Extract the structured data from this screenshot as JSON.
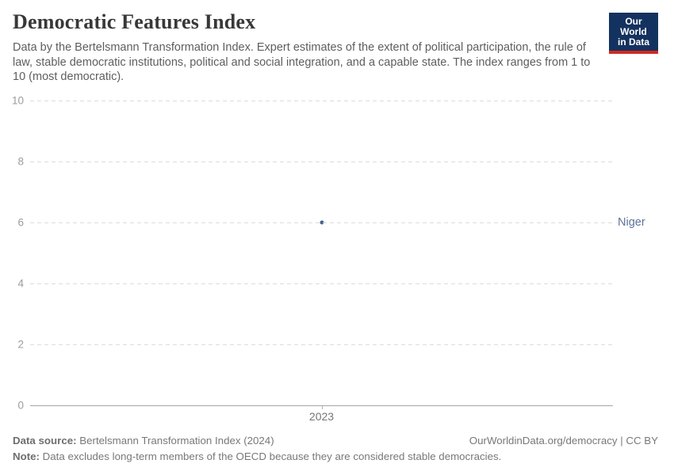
{
  "header": {
    "title": "Democratic Features Index",
    "subtitle": "Data by the Bertelsmann Transformation Index. Expert estimates of the extent of political participation, the rule of law, stable democratic institutions, political and social integration, and a capable state. The index ranges from 1 to 10 (most democratic).",
    "logo": {
      "line1": "Our World",
      "line2": "in Data"
    }
  },
  "colors": {
    "logo_navy": "#14325f",
    "logo_red": "#cf2a23",
    "point_blue": "#46618e",
    "entity_label_blue": "#5b749c"
  },
  "chart_data": {
    "type": "scatter",
    "title": "Democratic Features Index",
    "x": [
      2023
    ],
    "series": [
      {
        "name": "Niger",
        "values": [
          6
        ]
      }
    ],
    "xlabel": "",
    "ylabel": "",
    "ylim": [
      0,
      10
    ],
    "yticks": [
      0,
      2,
      4,
      6,
      8,
      10
    ],
    "xticks": [
      "2023"
    ],
    "grid": "horizontal-dashed",
    "legend_position": "right-of-point"
  },
  "footer": {
    "source_label": "Data source:",
    "source_text": " Bertelsmann Transformation Index (2024)",
    "credit": "OurWorldinData.org/democracy | CC BY",
    "note_label": "Note:",
    "note_text": " Data excludes long-term members of the OECD because they are considered stable democracies."
  }
}
